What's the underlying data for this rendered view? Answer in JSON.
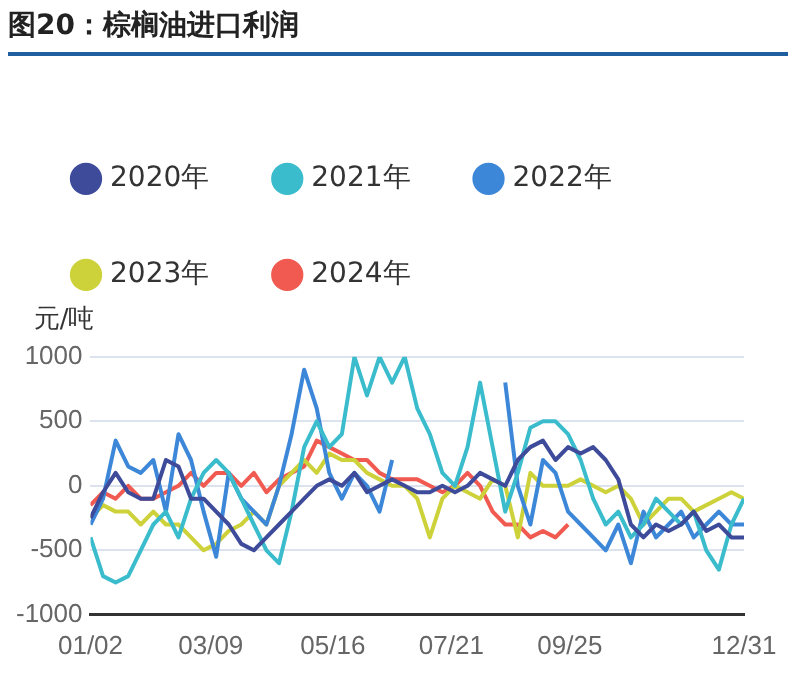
{
  "chart_data": {
    "type": "line",
    "title": "图20：棕榈油进口利润",
    "ylabel": "元/吨",
    "x": [
      "--01-02",
      "--01-09",
      "--01-16",
      "--01-23",
      "--01-30",
      "--02-06",
      "--02-13",
      "--02-20",
      "--02-27",
      "--03-05",
      "--03-12",
      "--03-19",
      "--03-26",
      "--04-02",
      "--04-09",
      "--04-16",
      "--04-23",
      "--04-30",
      "--05-07",
      "--05-14",
      "--05-21",
      "--05-28",
      "--06-04",
      "--06-11",
      "--06-18",
      "--06-25",
      "--07-02",
      "--07-09",
      "--07-16",
      "--07-23",
      "--07-30",
      "--08-06",
      "--08-13",
      "--08-20",
      "--08-27",
      "--09-03",
      "--09-10",
      "--09-17",
      "--09-24",
      "--10-01",
      "--10-08",
      "--10-15",
      "--10-22",
      "--10-29",
      "--11-05",
      "--11-12",
      "--11-19",
      "--11-26",
      "--12-03",
      "--12-10",
      "--12-17",
      "--12-24",
      "--12-31"
    ],
    "series": [
      {
        "name": "2020年",
        "color": "#3d4b9a",
        "values": [
          -250,
          -50,
          100,
          -50,
          -100,
          -100,
          200,
          150,
          -100,
          -100,
          -200,
          -300,
          -450,
          -500,
          -400,
          -300,
          -200,
          -100,
          0,
          50,
          0,
          100,
          -50,
          0,
          50,
          0,
          -50,
          -50,
          0,
          -50,
          0,
          100,
          50,
          0,
          200,
          300,
          350,
          200,
          300,
          250,
          300,
          200,
          50,
          -300,
          -400,
          -300,
          -350,
          -300,
          -200,
          -350,
          -300,
          -400,
          -400
        ]
      },
      {
        "name": "2021年",
        "color": "#3bbccc",
        "values": [
          -400,
          -700,
          -750,
          -700,
          -500,
          -300,
          -200,
          -400,
          -100,
          100,
          200,
          100,
          -100,
          -300,
          -500,
          -600,
          -200,
          300,
          500,
          300,
          400,
          1000,
          700,
          1000,
          800,
          1000,
          600,
          400,
          100,
          0,
          300,
          800,
          300,
          -200,
          100,
          450,
          500,
          500,
          400,
          200,
          -100,
          -300,
          -200,
          -400,
          -300,
          -100,
          -200,
          -300,
          -200,
          -500,
          -650,
          -300,
          -100
        ]
      },
      {
        "name": "2022年",
        "color": "#3d87d8",
        "values": [
          -300,
          -100,
          350,
          150,
          100,
          200,
          -200,
          400,
          200,
          -200,
          -550,
          100,
          -100,
          -200,
          -300,
          0,
          400,
          900,
          600,
          100,
          -100,
          100,
          0,
          -200,
          200,
          null,
          null,
          null,
          null,
          null,
          null,
          null,
          null,
          800,
          0,
          -300,
          200,
          100,
          -200,
          -300,
          -400,
          -500,
          -300,
          -600,
          -200,
          -400,
          -300,
          -200,
          -400,
          -300,
          -200,
          -300,
          -300
        ]
      },
      {
        "name": "2023年",
        "color": "#cdd23a",
        "values": [
          -250,
          -150,
          -200,
          -200,
          -300,
          -200,
          -300,
          -300,
          -400,
          -500,
          -450,
          -350,
          -300,
          -200,
          -300,
          0,
          100,
          200,
          100,
          250,
          200,
          200,
          100,
          50,
          0,
          0,
          -100,
          -400,
          -100,
          0,
          -50,
          -100,
          50,
          0,
          -400,
          100,
          0,
          0,
          0,
          50,
          0,
          -50,
          0,
          -100,
          -300,
          -200,
          -100,
          -100,
          -200,
          -150,
          -100,
          -50,
          -100
        ]
      },
      {
        "name": "2024年",
        "color": "#f05a50",
        "values": [
          -150,
          -50,
          -100,
          0,
          -100,
          -100,
          -50,
          0,
          100,
          0,
          100,
          100,
          0,
          100,
          -50,
          50,
          100,
          150,
          350,
          300,
          250,
          200,
          200,
          100,
          50,
          50,
          50,
          0,
          -50,
          0,
          100,
          0,
          -200,
          -300,
          -300,
          -400,
          -350,
          -400,
          -300,
          null,
          null,
          null,
          null,
          null,
          null,
          null,
          null,
          null,
          null,
          null,
          null,
          null,
          null
        ]
      }
    ],
    "xlim": [
      "--01-02",
      "--12-31"
    ],
    "xticks": [
      {
        "value": "--01-02",
        "label": "01/02"
      },
      {
        "value": "--03-09",
        "label": "03/09"
      },
      {
        "value": "--05-16",
        "label": "05/16"
      },
      {
        "value": "--07-21",
        "label": "07/21"
      },
      {
        "value": "--09-25",
        "label": "09/25"
      },
      {
        "value": "--12-31",
        "label": "12/31"
      }
    ],
    "ylim": [
      -1000,
      1000
    ],
    "yticks": [
      -1000,
      -500,
      0,
      500,
      1000
    ],
    "grid": "y",
    "legend": "top left",
    "marker": "none",
    "line_style": "solid"
  }
}
